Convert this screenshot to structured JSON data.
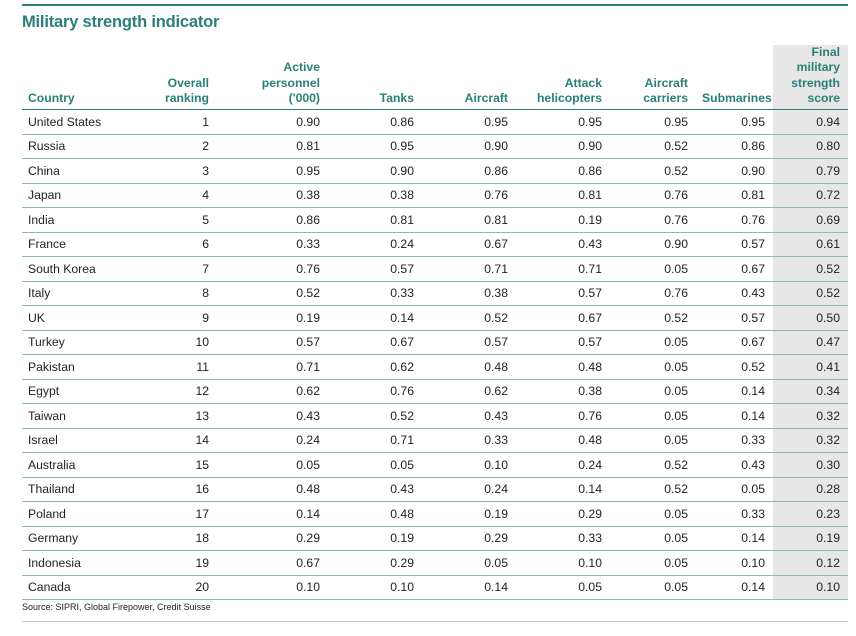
{
  "title": "Military strength indicator",
  "source": "Source: SIPRI, Global Firepower, Credit Suisse",
  "colors": {
    "accent": "#2a7f79",
    "highlight_column": "#e7e7e7",
    "row_rule": "#8cbab3"
  },
  "chart_data": {
    "type": "table",
    "title": "Military strength indicator",
    "columns": [
      [
        "Country"
      ],
      [
        "Overall",
        "ranking"
      ],
      [
        "Active",
        "personnel",
        "('000)"
      ],
      [
        "Tanks"
      ],
      [
        "Aircraft"
      ],
      [
        "Attack",
        "helicopters"
      ],
      [
        "Aircraft",
        "carriers"
      ],
      [
        "Submarines"
      ],
      [
        "Final military",
        "strength",
        "score"
      ]
    ],
    "rows": [
      [
        "United States",
        "1",
        "0.90",
        "0.86",
        "0.95",
        "0.95",
        "0.95",
        "0.95",
        "0.94"
      ],
      [
        "Russia",
        "2",
        "0.81",
        "0.95",
        "0.90",
        "0.90",
        "0.52",
        "0.86",
        "0.80"
      ],
      [
        "China",
        "3",
        "0.95",
        "0.90",
        "0.86",
        "0.86",
        "0.52",
        "0.90",
        "0.79"
      ],
      [
        "Japan",
        "4",
        "0.38",
        "0.38",
        "0.76",
        "0.81",
        "0.76",
        "0.81",
        "0.72"
      ],
      [
        "India",
        "5",
        "0.86",
        "0.81",
        "0.81",
        "0.19",
        "0.76",
        "0.76",
        "0.69"
      ],
      [
        "France",
        "6",
        "0.33",
        "0.24",
        "0.67",
        "0.43",
        "0.90",
        "0.57",
        "0.61"
      ],
      [
        "South Korea",
        "7",
        "0.76",
        "0.57",
        "0.71",
        "0.71",
        "0.05",
        "0.67",
        "0.52"
      ],
      [
        "Italy",
        "8",
        "0.52",
        "0.33",
        "0.38",
        "0.57",
        "0.76",
        "0.43",
        "0.52"
      ],
      [
        "UK",
        "9",
        "0.19",
        "0.14",
        "0.52",
        "0.67",
        "0.52",
        "0.57",
        "0.50"
      ],
      [
        "Turkey",
        "10",
        "0.57",
        "0.67",
        "0.57",
        "0.57",
        "0.05",
        "0.67",
        "0.47"
      ],
      [
        "Pakistan",
        "11",
        "0.71",
        "0.62",
        "0.48",
        "0.48",
        "0.05",
        "0.52",
        "0.41"
      ],
      [
        "Egypt",
        "12",
        "0.62",
        "0.76",
        "0.62",
        "0.38",
        "0.05",
        "0.14",
        "0.34"
      ],
      [
        "Taiwan",
        "13",
        "0.43",
        "0.52",
        "0.43",
        "0.76",
        "0.05",
        "0.14",
        "0.32"
      ],
      [
        "Israel",
        "14",
        "0.24",
        "0.71",
        "0.33",
        "0.48",
        "0.05",
        "0.33",
        "0.32"
      ],
      [
        "Australia",
        "15",
        "0.05",
        "0.05",
        "0.10",
        "0.24",
        "0.52",
        "0.43",
        "0.30"
      ],
      [
        "Thailand",
        "16",
        "0.48",
        "0.43",
        "0.24",
        "0.14",
        "0.52",
        "0.05",
        "0.28"
      ],
      [
        "Poland",
        "17",
        "0.14",
        "0.48",
        "0.19",
        "0.29",
        "0.05",
        "0.33",
        "0.23"
      ],
      [
        "Germany",
        "18",
        "0.29",
        "0.19",
        "0.29",
        "0.33",
        "0.05",
        "0.14",
        "0.19"
      ],
      [
        "Indonesia",
        "19",
        "0.67",
        "0.29",
        "0.05",
        "0.10",
        "0.05",
        "0.10",
        "0.12"
      ],
      [
        "Canada",
        "20",
        "0.10",
        "0.10",
        "0.14",
        "0.05",
        "0.05",
        "0.14",
        "0.10"
      ]
    ]
  }
}
